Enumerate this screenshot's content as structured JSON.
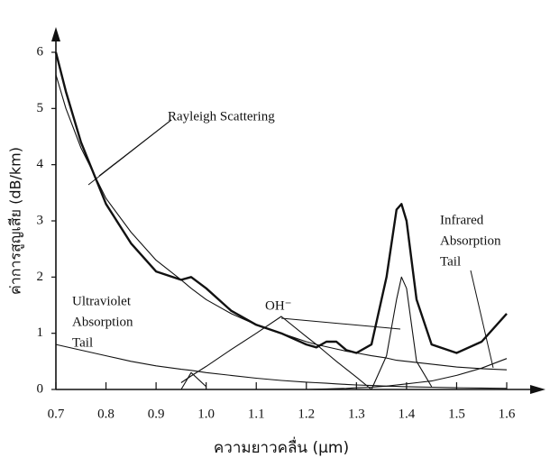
{
  "chart_data": {
    "type": "line",
    "x_label": "ความยาวคลื่น (µm)",
    "y_label": "ค่าการสูญเสีย (dB/km)",
    "xlim": [
      0.7,
      1.6
    ],
    "ylim": [
      0,
      6
    ],
    "xticks": [
      0.7,
      0.8,
      0.9,
      {
        "value": 1.0,
        "label": "1.0"
      },
      1.1,
      1.2,
      1.3,
      1.4,
      1.5,
      1.6
    ],
    "yticks": [
      0,
      1,
      2,
      3,
      4,
      5,
      6
    ],
    "x": [
      0.7,
      0.72,
      0.75,
      0.8,
      0.85,
      0.9,
      0.95,
      0.97,
      1.0,
      1.05,
      1.1,
      1.15,
      1.2,
      1.22,
      1.24,
      1.26,
      1.28,
      1.3,
      1.33,
      1.36,
      1.38,
      1.39,
      1.4,
      1.42,
      1.45,
      1.5,
      1.55,
      1.6
    ],
    "series": [
      {
        "color": "#111111",
        "values": [
          6.0,
          5.3,
          4.4,
          3.3,
          2.6,
          2.1,
          1.95,
          2.0,
          1.8,
          1.4,
          1.15,
          1.0,
          0.8,
          0.75,
          0.85,
          0.85,
          0.7,
          0.65,
          0.8,
          2.0,
          3.2,
          3.3,
          3.0,
          1.6,
          0.8,
          0.65,
          0.85,
          1.35
        ]
      },
      {
        "color": "#111111",
        "values": [
          5.6,
          5.0,
          4.3,
          3.4,
          2.8,
          2.3,
          1.95,
          1.8,
          1.6,
          1.35,
          1.15,
          1.0,
          0.85,
          0.8,
          0.76,
          0.72,
          0.68,
          0.65,
          0.6,
          0.56,
          0.52,
          0.51,
          0.5,
          0.48,
          0.45,
          0.4,
          0.37,
          0.35
        ]
      },
      {
        "color": "#111111",
        "values": [
          0.8,
          0.76,
          0.7,
          0.6,
          0.5,
          0.42,
          0.36,
          0.34,
          0.3,
          0.25,
          0.2,
          0.16,
          0.13,
          0.12,
          0.11,
          0.1,
          0.09,
          0.08,
          0.07,
          0.06,
          0.055,
          0.052,
          0.05,
          0.045,
          0.04,
          0.03,
          0.025,
          0.02
        ]
      },
      {
        "color": "#111111",
        "values": [
          null,
          null,
          null,
          null,
          null,
          null,
          null,
          null,
          null,
          null,
          null,
          null,
          0.0,
          0.005,
          0.01,
          0.015,
          0.02,
          0.03,
          0.04,
          0.06,
          0.08,
          0.09,
          0.1,
          0.12,
          0.15,
          0.25,
          0.38,
          0.55
        ]
      },
      {
        "color": "#111111",
        "values": [
          null,
          null,
          null,
          null,
          null,
          null,
          0.12,
          0.24,
          0.41,
          0.71,
          1.0,
          1.3,
          0.94,
          0.8,
          0.65,
          0.5,
          0.36,
          0.22,
          0.0,
          null,
          null,
          null,
          null,
          null,
          null,
          null,
          null,
          null
        ]
      },
      {
        "color": "#111111",
        "values": [
          null,
          null,
          null,
          null,
          null,
          null,
          0.0,
          0.3,
          0.05,
          null,
          null,
          null,
          null,
          null,
          null,
          null,
          null,
          null,
          0.0,
          0.6,
          1.6,
          2.0,
          1.8,
          0.5,
          0.05,
          null,
          null,
          null
        ]
      }
    ],
    "annotations": [
      {
        "lines": [
          "Rayleigh Scattering"
        ]
      },
      {
        "lines": [
          "OH⁻"
        ]
      },
      {
        "lines": [
          "Ultraviolet",
          "Absorption",
          "Tail"
        ]
      },
      {
        "lines": [
          "Infrared",
          "Absorption",
          "Tail"
        ]
      }
    ]
  }
}
